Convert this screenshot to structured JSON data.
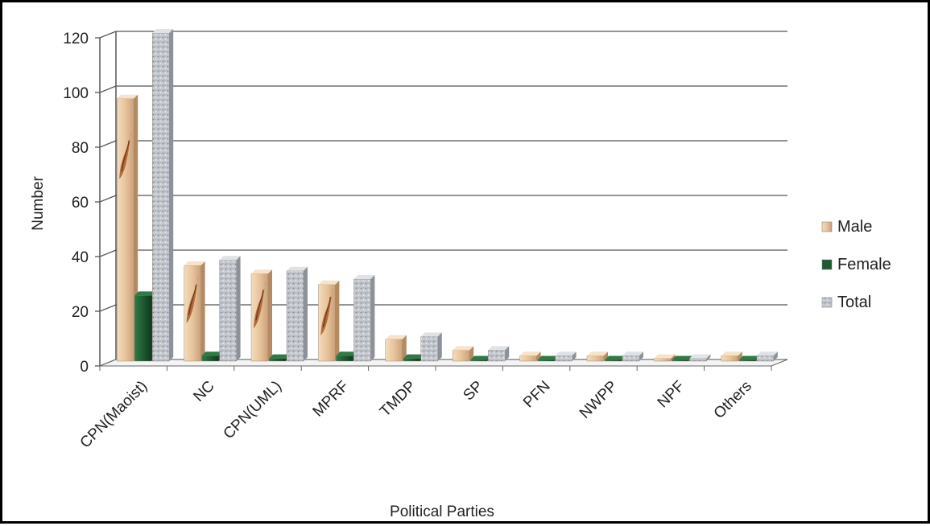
{
  "chart_data": {
    "type": "bar",
    "xlabel": "Political Parties",
    "ylabel": "Number",
    "ylim": [
      0,
      120
    ],
    "yticks": [
      "0",
      "20",
      "40",
      "60",
      "80",
      "100",
      "120"
    ],
    "grid": true,
    "legend_position": "right",
    "categories": [
      "CPN(Maoist)",
      "NC",
      "CPN(UML)",
      "MPRF",
      "TMDP",
      "SP",
      "PFN",
      "NWPP",
      "NPF",
      "Others"
    ],
    "series": [
      {
        "name": "Male",
        "color": "#e6c49c",
        "values": [
          96,
          35,
          32,
          28,
          8,
          4,
          2,
          2,
          1,
          2
        ]
      },
      {
        "name": "Female",
        "color": "#1e5a32",
        "values": [
          24,
          2,
          1,
          2,
          1,
          0,
          0,
          0,
          0,
          0
        ]
      },
      {
        "name": "Total",
        "color": "#b8bcc4",
        "values": [
          120,
          37,
          33,
          30,
          9,
          4,
          2,
          2,
          1,
          2
        ]
      }
    ]
  }
}
